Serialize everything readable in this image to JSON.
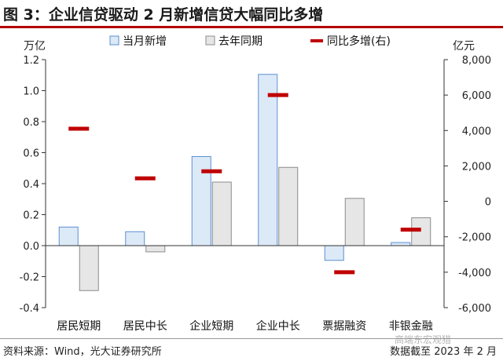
{
  "figure_title": "图 3：企业信贷驱动 2 月新增信贷大幅同比多增",
  "source": "资料来源：Wind，光大证券研究所",
  "cutoff": "数据截至 2023 年 2 月",
  "watermark": "高端东宏观猎",
  "colors": {
    "title_rule": "#b30000",
    "current_fill": "#dce9f7",
    "current_stroke": "#5b8fd0",
    "lastyear_fill": "#e6e6e6",
    "lastyear_stroke": "#8c8c8c",
    "yoy_marker": "#c00000"
  },
  "chart_data": {
    "type": "bar",
    "categories": [
      "居民短期",
      "居民中长",
      "企业短期",
      "企业中长",
      "票据融资",
      "非银金融"
    ],
    "series": [
      {
        "name": "当月新增",
        "axis": "left",
        "kind": "bar",
        "values": [
          0.12,
          0.09,
          0.575,
          1.105,
          -0.095,
          0.02
        ]
      },
      {
        "name": "去年同期",
        "axis": "left",
        "kind": "bar",
        "values": [
          -0.29,
          -0.04,
          0.41,
          0.505,
          0.305,
          0.18
        ]
      },
      {
        "name": "同比多增(右)",
        "axis": "right",
        "kind": "marker",
        "values": [
          4100,
          1300,
          1700,
          6000,
          -4000,
          -1600
        ]
      }
    ],
    "y_left": {
      "unit": "万亿",
      "lim": [
        -0.4,
        1.2
      ],
      "ticks": [
        -0.4,
        -0.2,
        0.0,
        0.2,
        0.4,
        0.6,
        0.8,
        1.0,
        1.2
      ],
      "tick_labels": [
        "-0.4",
        "-0.2",
        "0.0",
        "0.2",
        "0.4",
        "0.6",
        "0.8",
        "1.0",
        "1.2"
      ]
    },
    "y_right": {
      "unit": "亿元",
      "lim": [
        -6000,
        8000
      ],
      "ticks": [
        -6000,
        -4000,
        -2000,
        0,
        2000,
        4000,
        6000,
        8000
      ],
      "tick_labels": [
        "-6,000",
        "-4,000",
        "-2,000",
        "0",
        "2,000",
        "4,000",
        "6,000",
        "8,000"
      ]
    },
    "legend_position": "top",
    "grid": false
  }
}
